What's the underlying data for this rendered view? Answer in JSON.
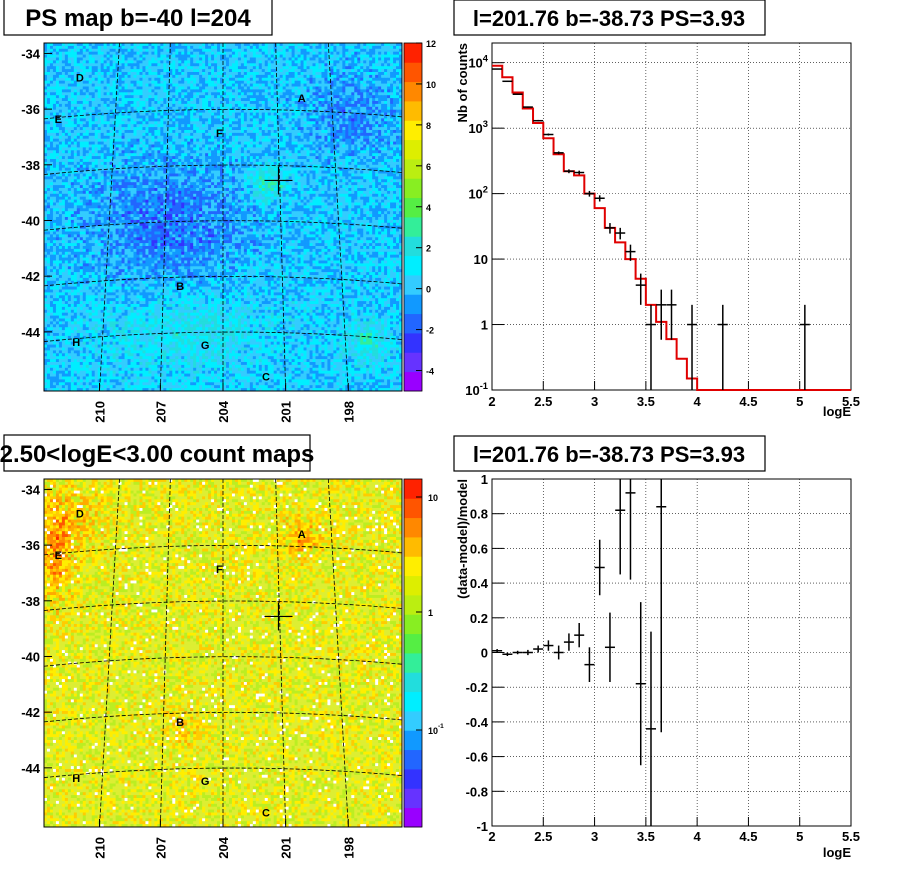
{
  "chart_data": [
    {
      "type": "heatmap",
      "title": "PS map b=-40 l=204",
      "y_ticks": [
        "-34",
        "-36",
        "-38",
        "-40",
        "-42",
        "-44"
      ],
      "x_ticks": [
        "210",
        "207",
        "204",
        "201",
        "198"
      ],
      "source_labels": [
        "A",
        "B",
        "C",
        "D",
        "E",
        "F",
        "G",
        "H"
      ],
      "colorbar_ticks": [
        "12",
        "10",
        "8",
        "6",
        "4",
        "2",
        "0",
        "-2",
        "-4"
      ],
      "zlim": [
        -5,
        12
      ],
      "marker": {
        "x": 201.76,
        "y": -38.73
      }
    },
    {
      "type": "line",
      "title": "l=201.76 b=-38.73 PS=3.93",
      "xlabel": "logE",
      "ylabel": "Nb of counts",
      "x_ticks": [
        "2",
        "2.5",
        "3",
        "3.5",
        "4",
        "4.5",
        "5",
        "5.5"
      ],
      "y_ticks": [
        "10^{-1}",
        "1",
        "10",
        "10^{2}",
        "10^{3}",
        "10^{4}"
      ],
      "xlim": [
        2,
        5.5
      ],
      "ylim": [
        0.1,
        20000
      ],
      "log_y": true,
      "grid": true,
      "data_points": [
        {
          "x": 2.05,
          "y": 8000
        },
        {
          "x": 2.15,
          "y": 5200
        },
        {
          "x": 2.25,
          "y": 3300
        },
        {
          "x": 2.35,
          "y": 2100
        },
        {
          "x": 2.45,
          "y": 1300
        },
        {
          "x": 2.55,
          "y": 800
        },
        {
          "x": 2.65,
          "y": 420
        },
        {
          "x": 2.75,
          "y": 220
        },
        {
          "x": 2.85,
          "y": 210
        },
        {
          "x": 2.95,
          "y": 100
        },
        {
          "x": 3.05,
          "y": 85
        },
        {
          "x": 3.15,
          "y": 30
        },
        {
          "x": 3.25,
          "y": 25
        },
        {
          "x": 3.35,
          "y": 13
        },
        {
          "x": 3.45,
          "y": 4
        },
        {
          "x": 3.55,
          "y": 1
        },
        {
          "x": 3.65,
          "y": 2
        },
        {
          "x": 3.75,
          "y": 2
        },
        {
          "x": 3.95,
          "y": 1
        },
        {
          "x": 4.25,
          "y": 1
        },
        {
          "x": 5.05,
          "y": 1
        }
      ],
      "model_steps": [
        {
          "x0": 2.0,
          "x1": 2.1,
          "y": 9000
        },
        {
          "x0": 2.1,
          "x1": 2.2,
          "y": 6000
        },
        {
          "x0": 2.2,
          "x1": 2.3,
          "y": 3500
        },
        {
          "x0": 2.3,
          "x1": 2.4,
          "y": 2000
        },
        {
          "x0": 2.4,
          "x1": 2.5,
          "y": 1200
        },
        {
          "x0": 2.5,
          "x1": 2.6,
          "y": 700
        },
        {
          "x0": 2.6,
          "x1": 2.7,
          "y": 400
        },
        {
          "x0": 2.7,
          "x1": 2.8,
          "y": 220
        },
        {
          "x0": 2.8,
          "x1": 2.9,
          "y": 190
        },
        {
          "x0": 2.9,
          "x1": 3.0,
          "y": 100
        },
        {
          "x0": 3.0,
          "x1": 3.1,
          "y": 60
        },
        {
          "x0": 3.1,
          "x1": 3.2,
          "y": 30
        },
        {
          "x0": 3.2,
          "x1": 3.3,
          "y": 18
        },
        {
          "x0": 3.3,
          "x1": 3.4,
          "y": 10
        },
        {
          "x0": 3.4,
          "x1": 3.5,
          "y": 5
        },
        {
          "x0": 3.5,
          "x1": 3.6,
          "y": 2
        },
        {
          "x0": 3.6,
          "x1": 3.7,
          "y": 1.1
        },
        {
          "x0": 3.7,
          "x1": 3.8,
          "y": 0.6
        },
        {
          "x0": 3.8,
          "x1": 3.9,
          "y": 0.3
        },
        {
          "x0": 3.9,
          "x1": 4.0,
          "y": 0.15
        },
        {
          "x0": 4.0,
          "x1": 5.5,
          "y": 0.1
        }
      ]
    },
    {
      "type": "heatmap",
      "title": "2.50<logE<3.00 count maps",
      "y_ticks": [
        "-34",
        "-36",
        "-38",
        "-40",
        "-42",
        "-44"
      ],
      "x_ticks": [
        "210",
        "207",
        "204",
        "201",
        "198"
      ],
      "source_labels": [
        "A",
        "B",
        "C",
        "D",
        "E",
        "F",
        "G",
        "H"
      ],
      "colorbar_ticks": [
        "10",
        "1",
        "10^{-1}"
      ],
      "log_z": true,
      "marker": {
        "x": 201.76,
        "y": -38.73
      }
    },
    {
      "type": "scatter",
      "title": "l=201.76 b=-38.73 PS=3.93",
      "xlabel": "logE",
      "ylabel": "(data-model)/model",
      "x_ticks": [
        "2",
        "2.5",
        "3",
        "3.5",
        "4",
        "4.5",
        "5",
        "5.5"
      ],
      "y_ticks": [
        "1",
        "0.8",
        "0.6",
        "0.4",
        "0.2",
        "0",
        "-0.2",
        "-0.4",
        "-0.6",
        "-0.8",
        "-1"
      ],
      "xlim": [
        2,
        5.5
      ],
      "ylim": [
        -1,
        1
      ],
      "grid": true,
      "points": [
        {
          "x": 2.05,
          "y": 0.01,
          "err": 0.01
        },
        {
          "x": 2.15,
          "y": -0.01,
          "err": 0.01
        },
        {
          "x": 2.25,
          "y": 0.0,
          "err": 0.01
        },
        {
          "x": 2.35,
          "y": 0.0,
          "err": 0.015
        },
        {
          "x": 2.45,
          "y": 0.02,
          "err": 0.02
        },
        {
          "x": 2.55,
          "y": 0.04,
          "err": 0.03
        },
        {
          "x": 2.65,
          "y": 0.0,
          "err": 0.04
        },
        {
          "x": 2.75,
          "y": 0.06,
          "err": 0.05
        },
        {
          "x": 2.85,
          "y": 0.1,
          "err": 0.07
        },
        {
          "x": 2.95,
          "y": -0.07,
          "err": 0.1
        },
        {
          "x": 3.05,
          "y": 0.49,
          "err": 0.16
        },
        {
          "x": 3.15,
          "y": 0.03,
          "err": 0.2
        },
        {
          "x": 3.25,
          "y": 0.82,
          "err": 0.37
        },
        {
          "x": 3.35,
          "y": 0.92,
          "err": 0.5
        },
        {
          "x": 3.45,
          "y": -0.18,
          "err": 0.47
        },
        {
          "x": 3.55,
          "y": -0.44,
          "err": 0.56
        },
        {
          "x": 3.65,
          "y": 0.84,
          "err": 1.3
        }
      ]
    }
  ]
}
